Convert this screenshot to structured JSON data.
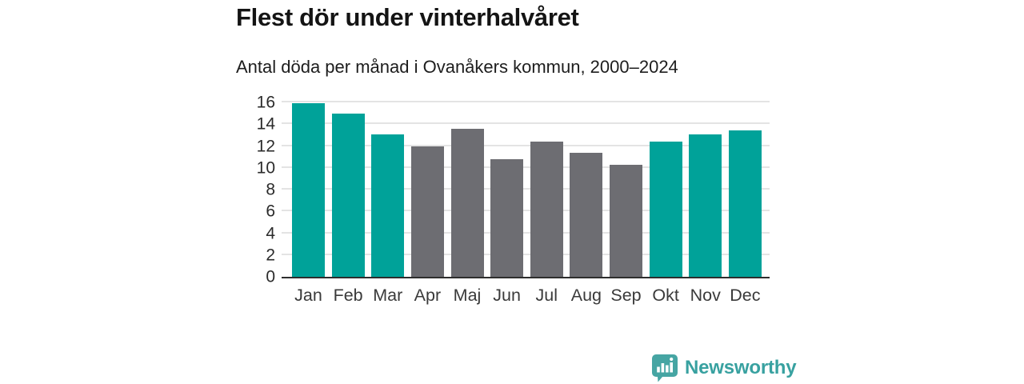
{
  "header": {
    "title": "Flest dör under vinterhalvåret",
    "subtitle": "Antal döda per månad i Ovanåkers kommun, 2000–2024"
  },
  "chart_data": {
    "type": "bar",
    "title": "Flest dör under vinterhalvåret",
    "subtitle": "Antal döda per månad i Ovanåkers kommun, 2000–2024",
    "categories": [
      "Jan",
      "Feb",
      "Mar",
      "Apr",
      "Maj",
      "Jun",
      "Jul",
      "Aug",
      "Sep",
      "Okt",
      "Nov",
      "Dec"
    ],
    "values": [
      15.9,
      15.0,
      13.1,
      12.0,
      13.6,
      10.8,
      12.4,
      11.4,
      10.3,
      12.4,
      13.1,
      13.4
    ],
    "bar_colors": [
      "#00a299",
      "#00a299",
      "#00a299",
      "#6d6d72",
      "#6d6d72",
      "#6d6d72",
      "#6d6d72",
      "#6d6d72",
      "#6d6d72",
      "#00a299",
      "#00a299",
      "#00a299"
    ],
    "highlighted_categories": [
      "Jan",
      "Feb",
      "Mar",
      "Okt",
      "Nov",
      "Dec"
    ],
    "xlabel": "",
    "ylabel": "",
    "ylim": [
      0,
      16
    ],
    "yticks": [
      0,
      2,
      4,
      6,
      8,
      10,
      12,
      14,
      16
    ],
    "grid": true,
    "legend_position": "none",
    "colors": {
      "highlight": "#00a299",
      "base": "#6d6d72",
      "gridline": "#e4e4e4",
      "axis": "#2e2e2e"
    }
  },
  "footer": {
    "brand_label": "Newsworthy",
    "brand_color": "#38a1a0",
    "logo_icon": "newsworthy-bar-chart-speech-bubble-icon"
  }
}
